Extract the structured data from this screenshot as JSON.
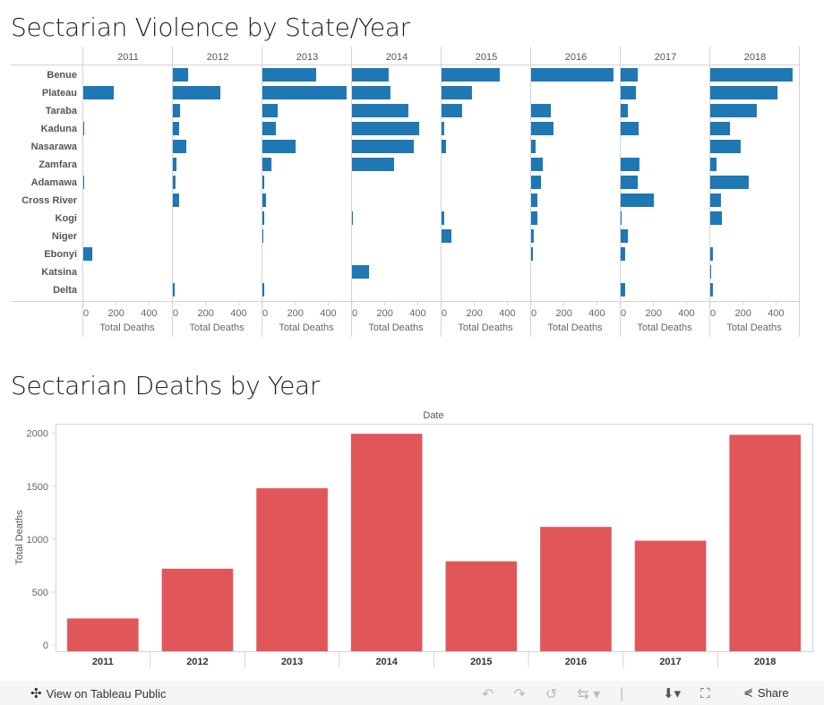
{
  "top_title": "Sectarian Violence by State/Year",
  "bottom_title": "Sectarian Deaths by Year",
  "toolbar": {
    "view_label": "View on Tableau Public",
    "share_label": "Share"
  },
  "chart_data": [
    {
      "type": "bar",
      "orientation": "horizontal",
      "title": "Sectarian Violence by State/Year",
      "columns": [
        "2011",
        "2012",
        "2013",
        "2014",
        "2015",
        "2016",
        "2017",
        "2018"
      ],
      "categories": [
        "Benue",
        "Plateau",
        "Taraba",
        "Kaduna",
        "Nasarawa",
        "Zamfara",
        "Adamawa",
        "Cross River",
        "Kogi",
        "Niger",
        "Ebonyi",
        "Katsina",
        "Delta"
      ],
      "xlabel": "Total Deaths",
      "xticks": [
        0,
        200,
        400
      ],
      "xlim": [
        0,
        550
      ],
      "color": "#1f77b4",
      "series": [
        {
          "values": [
            null,
            185,
            null,
            5,
            null,
            null,
            5,
            null,
            null,
            null,
            55,
            null,
            null
          ]
        },
        {
          "values": [
            93,
            289,
            44,
            38,
            82,
            22,
            16,
            38,
            null,
            null,
            null,
            null,
            11
          ]
        },
        {
          "values": [
            327,
            512,
            93,
            82,
            202,
            55,
            11,
            22,
            11,
            5,
            null,
            null,
            11
          ]
        },
        {
          "values": [
            223,
            234,
            343,
            409,
            376,
            256,
            null,
            null,
            5,
            null,
            null,
            104,
            null
          ]
        },
        {
          "values": [
            354,
            185,
            125,
            16,
            27,
            null,
            null,
            null,
            16,
            60,
            null,
            null,
            null
          ]
        },
        {
          "values": [
            501,
            null,
            120,
            136,
            27,
            71,
            60,
            38,
            38,
            16,
            11,
            null,
            null
          ]
        },
        {
          "values": [
            104,
            93,
            44,
            109,
            null,
            114,
            104,
            202,
            5,
            44,
            27,
            null,
            27
          ]
        },
        {
          "values": [
            501,
            409,
            283,
            120,
            185,
            38,
            234,
            65,
            71,
            null,
            16,
            5,
            16
          ]
        }
      ]
    },
    {
      "type": "bar",
      "title": "Sectarian Deaths by Year",
      "header": "Date",
      "categories": [
        "2011",
        "2012",
        "2013",
        "2014",
        "2015",
        "2016",
        "2017",
        "2018"
      ],
      "values": [
        310,
        780,
        1540,
        2055,
        850,
        1175,
        1045,
        2045
      ],
      "ylabel": "Total Deaths",
      "yticks": [
        0,
        500,
        1000,
        1500,
        2000
      ],
      "ylim": [
        0,
        2150
      ],
      "color": "#e15759"
    }
  ]
}
